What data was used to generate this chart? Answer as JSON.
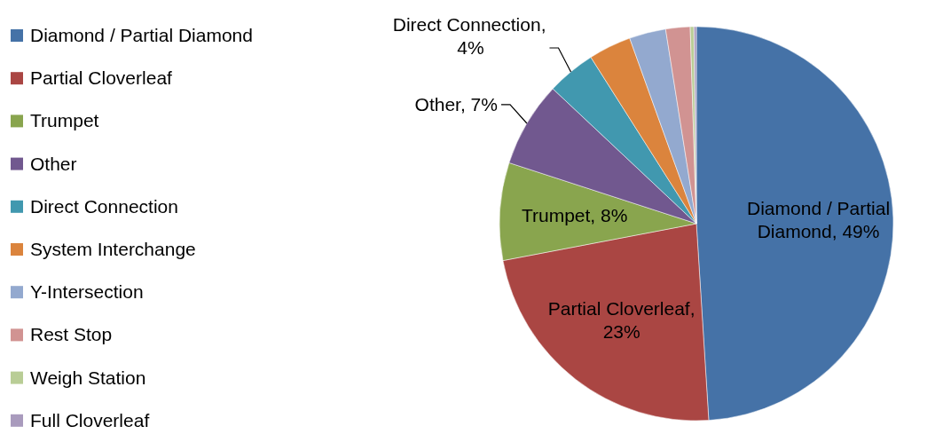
{
  "chart_data": {
    "type": "pie",
    "categories": [
      "Diamond / Partial Diamond",
      "Partial Cloverleaf",
      "Trumpet",
      "Other",
      "Direct Connection",
      "System Interchange",
      "Y-Intersection",
      "Rest Stop",
      "Weigh Station",
      "Full Cloverleaf"
    ],
    "values": [
      49,
      23,
      8,
      7,
      4,
      3.5,
      3,
      2,
      0.3,
      0.2
    ],
    "colors": [
      "#4572a7",
      "#aa4643",
      "#89a54e",
      "#71588f",
      "#4198af",
      "#db843d",
      "#93a9cf",
      "#d19392",
      "#b9cd96",
      "#a99bbd"
    ],
    "value_labels": [
      "Diamond / Partial Diamond, 49%",
      "Partial Cloverleaf, 23%",
      "Trumpet, 8%",
      "Other, 7%",
      "Direct Connection, 4%",
      null,
      null,
      null,
      null,
      null
    ],
    "legend": "left"
  }
}
